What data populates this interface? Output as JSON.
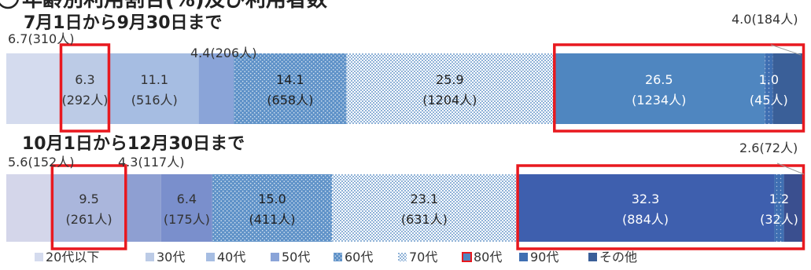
{
  "page_title_fragment": "年齢別利用割合(%)及び利用者数",
  "chart_data": [
    {
      "type": "bar",
      "orientation": "horizontal-stacked-100",
      "title": "7月1日から9月30日まで",
      "categories": [
        "20代以下",
        "30代",
        "40代",
        "50代",
        "60代",
        "70代",
        "80代",
        "90代",
        "その他"
      ],
      "values": [
        6.7,
        6.3,
        11.1,
        4.4,
        14.1,
        25.9,
        26.5,
        1.0,
        4.0
      ],
      "counts": [
        "310人",
        "292人",
        "516人",
        "206人",
        "658人",
        "1204人",
        "1234人",
        "45人",
        "184人"
      ],
      "value_labels": [
        "6.7(310人)",
        "6.3",
        "11.1",
        "4.4(206人)",
        "14.1",
        "25.9",
        "26.5",
        "1.0",
        "4.0(184人)"
      ],
      "count_labels": [
        "",
        "(292人)",
        "(516人)",
        "",
        "(658人)",
        "(1204人)",
        "(1234人)",
        "(45人)",
        ""
      ],
      "highlighted": [
        "30代",
        "80代"
      ]
    },
    {
      "type": "bar",
      "orientation": "horizontal-stacked-100",
      "title": "10月1日から12月30日まで",
      "categories": [
        "20代以下",
        "30代",
        "40代",
        "50代",
        "60代",
        "70代",
        "80代",
        "90代",
        "その他"
      ],
      "values": [
        5.6,
        9.5,
        4.3,
        6.4,
        15.0,
        23.1,
        32.3,
        1.2,
        2.6
      ],
      "counts": [
        "152人",
        "261人",
        "117人",
        "175人",
        "411人",
        "631人",
        "884人",
        "32人",
        "72人"
      ],
      "value_labels": [
        "5.6(152人)",
        "9.5",
        "4.3(117人)",
        "6.4",
        "15.0",
        "23.1",
        "32.3",
        "1.2",
        "2.6(72人)"
      ],
      "count_labels": [
        "",
        "(261人)",
        "",
        "(175人)",
        "(411人)",
        "(631人)",
        "(884人)",
        "(32人)",
        ""
      ],
      "highlighted": [
        "30代",
        "80代"
      ]
    }
  ],
  "legend": [
    {
      "label": "20代以下",
      "color": "#d4dbee",
      "pattern": "solid"
    },
    {
      "label": "30代",
      "color": "#bccbe6",
      "pattern": "solid"
    },
    {
      "label": "40代",
      "color": "#a6bde2",
      "pattern": "solid"
    },
    {
      "label": "50代",
      "color": "#8aa4d8",
      "pattern": "solid"
    },
    {
      "label": "60代",
      "color": "#5f92c8",
      "pattern": "dots"
    },
    {
      "label": "70代",
      "color": "#9fc0df",
      "pattern": "dense"
    },
    {
      "label": "80代",
      "color": "#4f86c0",
      "pattern": "redbox"
    },
    {
      "label": "90代",
      "color": "#3f6fb2",
      "pattern": "solid"
    },
    {
      "label": "その他",
      "color": "#3a5f98",
      "pattern": "solid"
    }
  ],
  "colors": {
    "highlight": "#e8191f",
    "text": "#333333",
    "chart1": [
      "#d4dbee",
      "#bccbe6",
      "#a6bde2",
      "#8aa4d8",
      "#5f92c8",
      "#9fc0df",
      "#4f86c0",
      "#3f6fb2",
      "#3a5f98"
    ],
    "chart2": [
      "#d4d6ea",
      "#aab6dc",
      "#8e9fd2",
      "#7a8fcc",
      "#5f92c8",
      "#9fc0df",
      "#3e5fae",
      "#3b57a6",
      "#3a4f8f"
    ],
    "patterns": [
      "solid",
      "solid",
      "solid",
      "solid",
      "dots",
      "dense",
      "solid",
      "dots",
      "solid"
    ]
  }
}
